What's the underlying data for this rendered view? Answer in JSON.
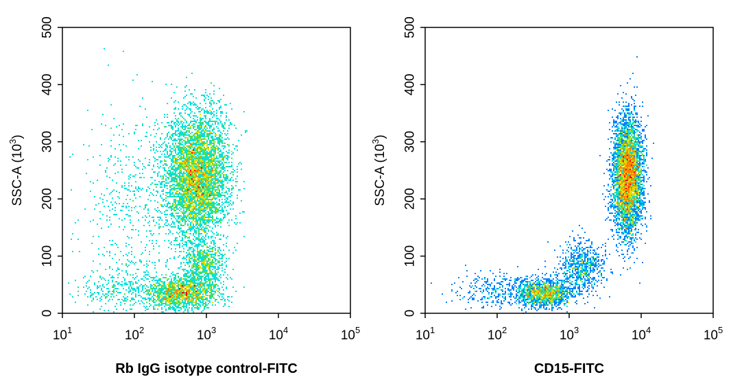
{
  "chart_data": [
    {
      "type": "scatter",
      "title": "",
      "xlabel": "Rb IgG isotype control-FITC",
      "ylabel": "SSC-A",
      "ylabel_unit_base": "10",
      "ylabel_unit_exp": "3",
      "x_scale": "log",
      "xlim": [
        10,
        100000
      ],
      "ylim": [
        0,
        500
      ],
      "xticks": [
        {
          "base": "10",
          "exp": "1",
          "value": 10
        },
        {
          "base": "10",
          "exp": "2",
          "value": 100
        },
        {
          "base": "10",
          "exp": "3",
          "value": 1000
        },
        {
          "base": "10",
          "exp": "4",
          "value": 10000
        },
        {
          "base": "10",
          "exp": "5",
          "value": 100000
        }
      ],
      "yticks": [
        {
          "label": "0",
          "value": 0
        },
        {
          "label": "100",
          "value": 100
        },
        {
          "label": "200",
          "value": 200
        },
        {
          "label": "300",
          "value": 300
        },
        {
          "label": "400",
          "value": 400
        },
        {
          "label": "500",
          "value": 500
        }
      ],
      "colormap": [
        "#0000ff",
        "#0080ff",
        "#00e0e0",
        "#40e060",
        "#e0e000",
        "#ff8000",
        "#ff0000"
      ],
      "clusters": [
        {
          "cx": 750,
          "cy": 240,
          "sx": 0.22,
          "sy": 55,
          "n": 5200
        },
        {
          "cx": 450,
          "cy": 35,
          "sx": 0.25,
          "sy": 14,
          "n": 1700
        },
        {
          "cx": 900,
          "cy": 85,
          "sx": 0.15,
          "sy": 20,
          "n": 700
        },
        {
          "cx": 120,
          "cy": 180,
          "sx": 0.4,
          "sy": 100,
          "n": 600
        },
        {
          "cx": 60,
          "cy": 40,
          "sx": 0.3,
          "sy": 20,
          "n": 250
        }
      ]
    },
    {
      "type": "scatter",
      "title": "",
      "xlabel": "CD15-FITC",
      "ylabel": "SSC-A",
      "ylabel_unit_base": "10",
      "ylabel_unit_exp": "3",
      "x_scale": "log",
      "xlim": [
        10,
        100000
      ],
      "ylim": [
        0,
        500
      ],
      "xticks": [
        {
          "base": "10",
          "exp": "1",
          "value": 10
        },
        {
          "base": "10",
          "exp": "2",
          "value": 100
        },
        {
          "base": "10",
          "exp": "3",
          "value": 1000
        },
        {
          "base": "10",
          "exp": "4",
          "value": 10000
        },
        {
          "base": "10",
          "exp": "5",
          "value": 100000
        }
      ],
      "yticks": [
        {
          "label": "0",
          "value": 0
        },
        {
          "label": "100",
          "value": 100
        },
        {
          "label": "200",
          "value": 200
        },
        {
          "label": "300",
          "value": 300
        },
        {
          "label": "400",
          "value": 400
        },
        {
          "label": "500",
          "value": 500
        }
      ],
      "colormap": [
        "#0000ff",
        "#0080ff",
        "#00e0e0",
        "#40e060",
        "#e0e000",
        "#ff8000",
        "#ff0000"
      ],
      "clusters": [
        {
          "cx": 6500,
          "cy": 240,
          "sx": 0.1,
          "sy": 50,
          "n": 5200
        },
        {
          "cx": 450,
          "cy": 35,
          "sx": 0.2,
          "sy": 12,
          "n": 1500
        },
        {
          "cx": 1500,
          "cy": 80,
          "sx": 0.15,
          "sy": 22,
          "n": 700
        },
        {
          "cx": 100,
          "cy": 40,
          "sx": 0.3,
          "sy": 15,
          "n": 300
        }
      ]
    }
  ]
}
